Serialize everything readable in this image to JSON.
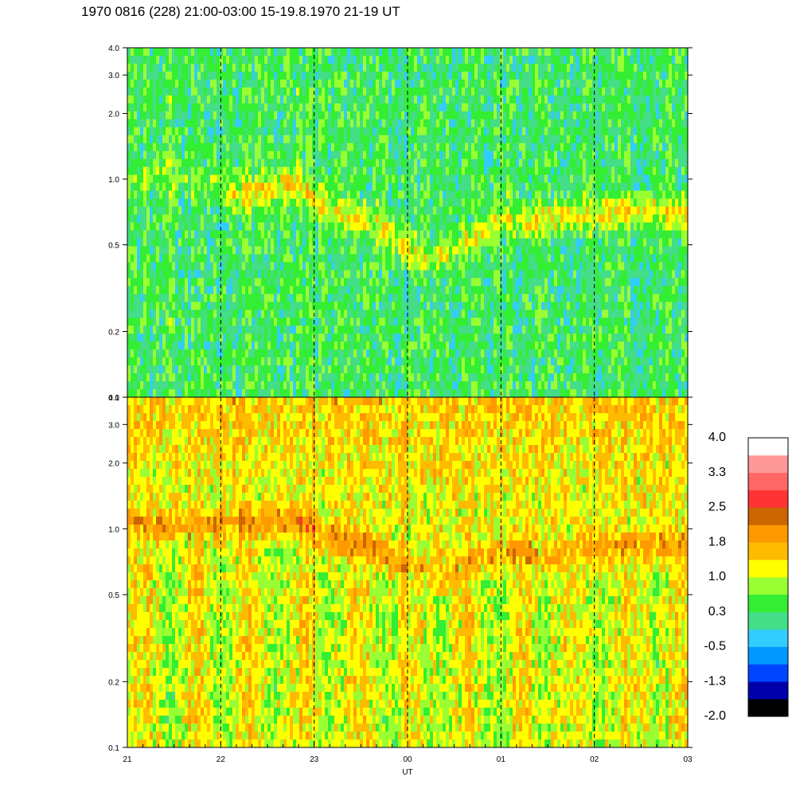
{
  "title": "1970 0816 (228) 21:00-03:00 15-19.8.1970  21-19 UT",
  "chart_data": {
    "type": "heatmap",
    "xlabel": "UT",
    "x_ticks": [
      "21",
      "22",
      "23",
      "00",
      "01",
      "02",
      "03"
    ],
    "x_range": [
      "21:00",
      "03:00"
    ],
    "y_scale": "log",
    "ylim": [
      0.1,
      4.0
    ],
    "y_ticks": [
      0.1,
      0.2,
      0.5,
      1.0,
      2.0,
      3.0,
      4.0
    ],
    "y_tick_labels": [
      "0.1",
      "0.2",
      "0.5",
      "1.0",
      "2.0",
      "3.0",
      "4.0"
    ],
    "hour_markers": "dashed vertical line at each hour",
    "panels": [
      {
        "name": "upper",
        "background_level": 0.3,
        "band": [
          {
            "x": "21:00",
            "y": 1.0,
            "level": 0.6
          },
          {
            "x": "21:50",
            "y": 1.0,
            "level": 0.6
          },
          {
            "x": "22:10",
            "y": 0.84,
            "level": 1.3
          },
          {
            "x": "22:50",
            "y": 0.95,
            "level": 1.4
          },
          {
            "x": "23:10",
            "y": 0.72,
            "level": 1.1
          },
          {
            "x": "23:40",
            "y": 0.62,
            "level": 1.1
          },
          {
            "x": "00:10",
            "y": 0.42,
            "level": 1.0
          },
          {
            "x": "00:30",
            "y": 0.48,
            "level": 1.0
          },
          {
            "x": "01:00",
            "y": 0.62,
            "level": 1.1
          },
          {
            "x": "01:30",
            "y": 0.66,
            "level": 1.2
          },
          {
            "x": "02:00",
            "y": 0.7,
            "level": 1.2
          },
          {
            "x": "02:30",
            "y": 0.72,
            "level": 1.3
          },
          {
            "x": "03:00",
            "y": 0.7,
            "level": 1.2
          }
        ]
      },
      {
        "name": "lower",
        "background_level": 1.1,
        "band": [
          {
            "x": "21:00",
            "y": 1.05,
            "level": 1.9
          },
          {
            "x": "22:00",
            "y": 1.05,
            "level": 1.9
          },
          {
            "x": "22:50",
            "y": 1.1,
            "level": 2.0
          },
          {
            "x": "23:10",
            "y": 0.92,
            "level": 1.9
          },
          {
            "x": "23:40",
            "y": 0.8,
            "level": 1.9
          },
          {
            "x": "00:10",
            "y": 0.62,
            "level": 1.7
          },
          {
            "x": "00:30",
            "y": 0.65,
            "level": 1.6
          },
          {
            "x": "01:00",
            "y": 0.78,
            "level": 1.8
          },
          {
            "x": "01:30",
            "y": 0.76,
            "level": 1.6
          },
          {
            "x": "02:00",
            "y": 0.82,
            "level": 1.8
          },
          {
            "x": "02:30",
            "y": 0.85,
            "level": 1.9
          },
          {
            "x": "03:00",
            "y": 0.82,
            "level": 1.8
          }
        ]
      }
    ],
    "colorbar": {
      "labels": [
        "4.0",
        "3.3",
        "2.5",
        "1.8",
        "1.0",
        "0.3",
        "-0.5",
        "-1.3",
        "-2.0"
      ],
      "range": [
        -2.0,
        4.0
      ],
      "colors": [
        "#000000",
        "#0000aa",
        "#0044ff",
        "#0099ff",
        "#33ccff",
        "#44dd88",
        "#33ee33",
        "#99ff33",
        "#ffff00",
        "#ffbb00",
        "#ff9900",
        "#cc6600",
        "#ff3333",
        "#ff6666",
        "#ff9999",
        "#ffffff"
      ]
    }
  }
}
